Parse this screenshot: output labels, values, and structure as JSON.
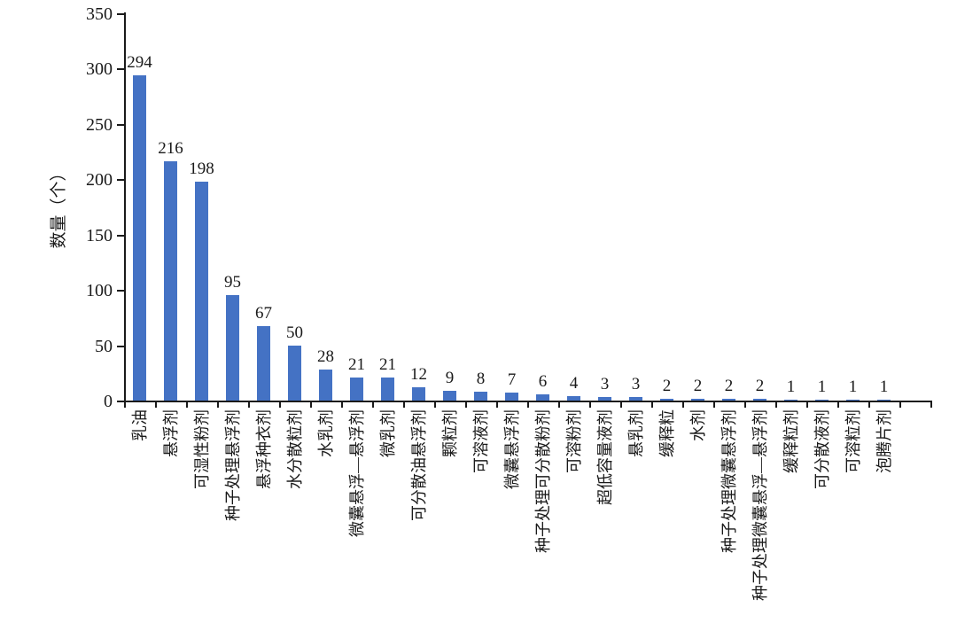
{
  "chart_data": {
    "type": "bar",
    "title": "",
    "xlabel": "",
    "ylabel": "数量（个）",
    "ylim": [
      0,
      350
    ],
    "yticks": [
      0,
      50,
      100,
      150,
      200,
      250,
      300,
      350
    ],
    "grid": false,
    "legend": false,
    "bar_color": "#4472C4",
    "axis_color": "#1a1a1a",
    "categories": [
      "乳油",
      "悬浮剂",
      "可湿性粉剂",
      "种子处理悬浮剂",
      "悬浮种衣剂",
      "水分散粒剂",
      "水乳剂",
      "微囊悬浮—悬浮剂",
      "微乳剂",
      "可分散油悬浮剂",
      "颗粒剂",
      "可溶液剂",
      "微囊悬浮剂",
      "种子处理可分散粉剂",
      "可溶粉剂",
      "超低容量液剂",
      "悬乳剂",
      "缓释粒",
      "水剂",
      "种子处理微囊悬浮剂",
      "种子处理微囊悬浮—悬浮剂",
      "缓释粒剂",
      "可分散液剂",
      "可溶粒剂",
      "泡腾片剂"
    ],
    "values": [
      294,
      216,
      198,
      95,
      67,
      50,
      28,
      21,
      21,
      12,
      9,
      8,
      7,
      6,
      4,
      3,
      3,
      2,
      2,
      2,
      2,
      1,
      1,
      1,
      1
    ]
  }
}
